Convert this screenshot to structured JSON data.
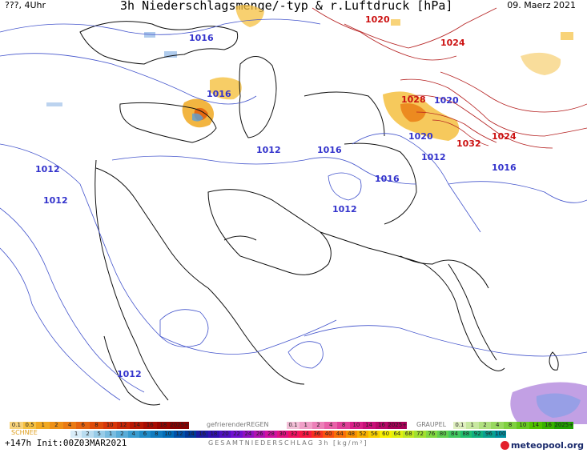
{
  "header": {
    "left": "???, 4Uhr",
    "title": "3h Niederschlagsmenge/-typ & r.Luftdruck [hPa]",
    "date": "09. Maerz 2021"
  },
  "isobar_labels": [
    {
      "text": "1020",
      "color": "#cc1111"
    },
    {
      "text": "1024",
      "color": "#cc1111"
    },
    {
      "text": "1016",
      "color": "#3333cc"
    },
    {
      "text": "1016",
      "color": "#3333cc"
    },
    {
      "text": "1028",
      "color": "#cc1111"
    },
    {
      "text": "1020",
      "color": "#3333cc"
    },
    {
      "text": "1012",
      "color": "#3333cc"
    },
    {
      "text": "1016",
      "color": "#3333cc"
    },
    {
      "text": "1020",
      "color": "#3333cc"
    },
    {
      "text": "1032",
      "color": "#cc1111"
    },
    {
      "text": "1024",
      "color": "#cc1111"
    },
    {
      "text": "1012",
      "color": "#3333cc"
    },
    {
      "text": "1016",
      "color": "#3333cc"
    },
    {
      "text": "1016",
      "color": "#3333cc"
    },
    {
      "text": "1012",
      "color": "#3333cc"
    },
    {
      "text": "1012",
      "color": "#3333cc"
    },
    {
      "text": "1012",
      "color": "#3333cc"
    },
    {
      "text": "1012",
      "color": "#3333cc"
    }
  ],
  "legend": {
    "schnee_label": "SCHNEE",
    "schnee_values": [
      "0.1",
      "0.5",
      "1",
      "2",
      "4",
      "6",
      "8",
      "10",
      "12",
      "14",
      "16",
      "18",
      "2025+"
    ],
    "regen_label": "gefrierenderREGEN",
    "regen_values": [
      "0.1",
      "1",
      "2",
      "4",
      "8",
      "10",
      "14",
      "16",
      "2025+"
    ],
    "graupel_label": "GRAUPEL",
    "graupel_values": [
      "0.1",
      "1",
      "2",
      "4",
      "8",
      "10",
      "14",
      "16",
      "2025+"
    ],
    "gesamt_label": "GESAMTNIEDERSCHLAG 3h [kg/m²]",
    "gesamt_values": [
      "1",
      "2",
      "5",
      "1",
      "2",
      "4",
      "6",
      "8",
      "10",
      "12",
      "14",
      "16",
      "18",
      "20",
      "22",
      "24",
      "26",
      "28",
      "30",
      "32",
      "34",
      "36",
      "40",
      "44",
      "48",
      "52",
      "56",
      "60",
      "64",
      "68",
      "72",
      "76",
      "80",
      "84",
      "88",
      "92",
      "96",
      "100"
    ]
  },
  "footer": {
    "run": "+147h Init:00Z03MAR2021",
    "brand": "meteopool.org"
  },
  "colors": {
    "snow": [
      "#f7d27a",
      "#f5c040",
      "#f0a820",
      "#ee9016",
      "#ea7a12",
      "#e4620e",
      "#de4c0a",
      "#d83608",
      "#c82606",
      "#b81804",
      "#a80c02",
      "#980400",
      "#880000"
    ],
    "rain": [
      "#f4c0d8",
      "#f0a0c8",
      "#ec80b8",
      "#e860a8",
      "#e04098",
      "#d82088",
      "#c81078",
      "#b80868",
      "#a80058"
    ],
    "graupel": [
      "#e0f0c0",
      "#c8e8a0",
      "#b0e080",
      "#98d860",
      "#80d040",
      "#68c820",
      "#50c000",
      "#38b000",
      "#20a000"
    ],
    "total": [
      "#d8ecf8",
      "#b8dcf0",
      "#98cce8",
      "#78bce0",
      "#58acd8",
      "#389cd0",
      "#208cc8",
      "#107cc0",
      "#006cb8",
      "#0050a8",
      "#003898",
      "#1a1aa0",
      "#3010b0",
      "#5010c0",
      "#7010d0",
      "#9010c0",
      "#b010b0",
      "#d010a0",
      "#e01080",
      "#f01060",
      "#f81840",
      "#f83020",
      "#f85010",
      "#f87008",
      "#f89000",
      "#f8b000",
      "#f8d000",
      "#f8f000",
      "#e0f010",
      "#c0e820",
      "#a0e030",
      "#80d840",
      "#60d050",
      "#40c860",
      "#20c070",
      "#10b080",
      "#08a090",
      "#0090a0"
    ]
  }
}
